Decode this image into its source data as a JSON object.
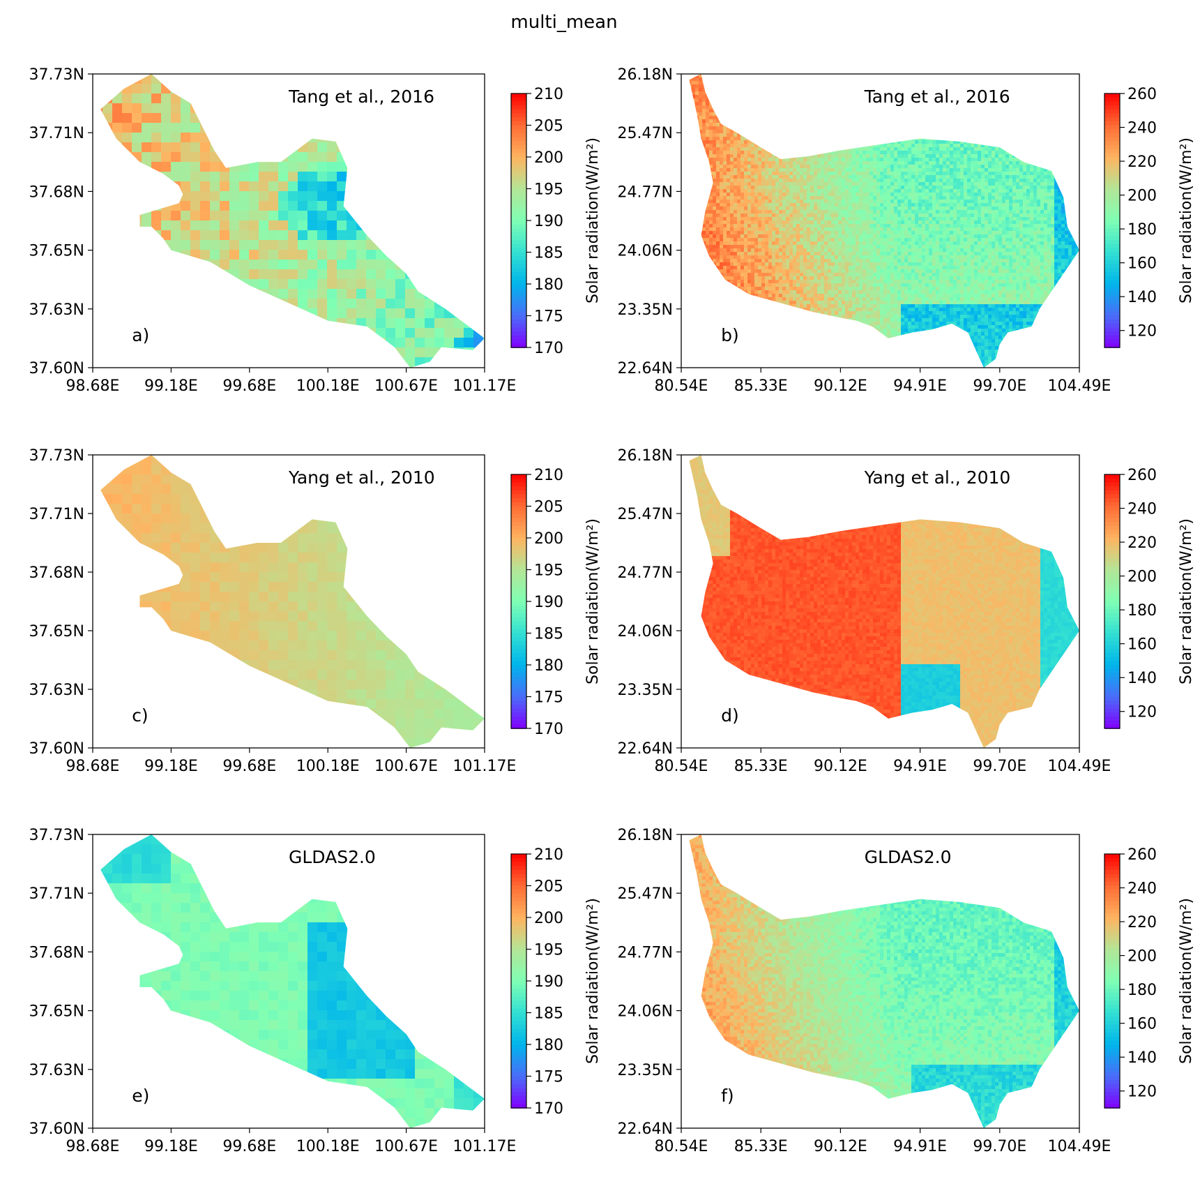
{
  "figure": {
    "title": "multi_mean"
  },
  "colorscales": {
    "rainbow": [
      "#8000ff",
      "#4a6ef9",
      "#00b5eb",
      "#33e0d2",
      "#80ffb4",
      "#b4e596",
      "#ffb360",
      "#ff6a34",
      "#ff0000"
    ]
  },
  "chart_data": [
    {
      "type": "heatmap",
      "panel_label": "a)",
      "dataset": "Tang et al., 2016",
      "region": "small",
      "x_ticks": [
        "98.68E",
        "99.18E",
        "99.68E",
        "100.18E",
        "100.67E",
        "101.17E"
      ],
      "y_ticks": [
        "37.60N",
        "37.63N",
        "37.65N",
        "37.68N",
        "37.71N",
        "37.73N"
      ],
      "xlim": [
        98.68,
        101.17
      ],
      "ylim": [
        37.6,
        37.73
      ],
      "colorbar": {
        "ticks": [
          "170",
          "175",
          "180",
          "185",
          "190",
          "195",
          "200",
          "205",
          "210"
        ],
        "range": [
          170,
          210
        ],
        "label": "Solar radiation(W/m²)"
      }
    },
    {
      "type": "heatmap",
      "panel_label": "b)",
      "dataset": "Tang et al., 2016",
      "region": "large",
      "x_ticks": [
        "80.54E",
        "85.33E",
        "90.12E",
        "94.91E",
        "99.70E",
        "104.49E"
      ],
      "y_ticks": [
        "22.64N",
        "23.35N",
        "24.06N",
        "24.77N",
        "25.47N",
        "26.18N"
      ],
      "xlim": [
        80.54,
        104.49
      ],
      "ylim": [
        22.64,
        26.18
      ],
      "colorbar": {
        "ticks": [
          "120",
          "140",
          "160",
          "180",
          "200",
          "220",
          "240",
          "260"
        ],
        "range": [
          110,
          260
        ],
        "label": "Solar radiation(W/m²)"
      }
    },
    {
      "type": "heatmap",
      "panel_label": "c)",
      "dataset": "Yang et al., 2010",
      "region": "small",
      "x_ticks": [
        "98.68E",
        "99.18E",
        "99.68E",
        "100.18E",
        "100.67E",
        "101.17E"
      ],
      "y_ticks": [
        "37.60N",
        "37.63N",
        "37.65N",
        "37.68N",
        "37.71N",
        "37.73N"
      ],
      "xlim": [
        98.68,
        101.17
      ],
      "ylim": [
        37.6,
        37.73
      ],
      "colorbar": {
        "ticks": [
          "170",
          "175",
          "180",
          "185",
          "190",
          "195",
          "200",
          "205",
          "210"
        ],
        "range": [
          170,
          210
        ],
        "label": "Solar radiation(W/m²)"
      }
    },
    {
      "type": "heatmap",
      "panel_label": "d)",
      "dataset": "Yang et al., 2010",
      "region": "large",
      "x_ticks": [
        "80.54E",
        "85.33E",
        "90.12E",
        "94.91E",
        "99.70E",
        "104.49E"
      ],
      "y_ticks": [
        "22.64N",
        "23.35N",
        "24.06N",
        "24.77N",
        "25.47N",
        "26.18N"
      ],
      "xlim": [
        80.54,
        104.49
      ],
      "ylim": [
        22.64,
        26.18
      ],
      "colorbar": {
        "ticks": [
          "120",
          "140",
          "160",
          "180",
          "200",
          "220",
          "240",
          "260"
        ],
        "range": [
          110,
          260
        ],
        "label": "Solar radiation(W/m²)"
      }
    },
    {
      "type": "heatmap",
      "panel_label": "e)",
      "dataset": "GLDAS2.0",
      "region": "small",
      "x_ticks": [
        "98.68E",
        "99.18E",
        "99.68E",
        "100.18E",
        "100.67E",
        "101.17E"
      ],
      "y_ticks": [
        "37.60N",
        "37.63N",
        "37.65N",
        "37.68N",
        "37.71N",
        "37.73N"
      ],
      "xlim": [
        98.68,
        101.17
      ],
      "ylim": [
        37.6,
        37.73
      ],
      "colorbar": {
        "ticks": [
          "170",
          "175",
          "180",
          "185",
          "190",
          "195",
          "200",
          "205",
          "210"
        ],
        "range": [
          170,
          210
        ],
        "label": "Solar radiation(W/m²)"
      }
    },
    {
      "type": "heatmap",
      "panel_label": "f)",
      "dataset": "GLDAS2.0",
      "region": "large",
      "x_ticks": [
        "80.54E",
        "85.33E",
        "90.12E",
        "94.91E",
        "99.70E",
        "104.49E"
      ],
      "y_ticks": [
        "22.64N",
        "23.35N",
        "24.06N",
        "24.77N",
        "25.47N",
        "26.18N"
      ],
      "xlim": [
        80.54,
        104.49
      ],
      "ylim": [
        22.64,
        26.18
      ],
      "colorbar": {
        "ticks": [
          "120",
          "140",
          "160",
          "180",
          "200",
          "220",
          "240",
          "260"
        ],
        "range": [
          110,
          260
        ],
        "label": "Solar radiation(W/m²)"
      }
    }
  ]
}
